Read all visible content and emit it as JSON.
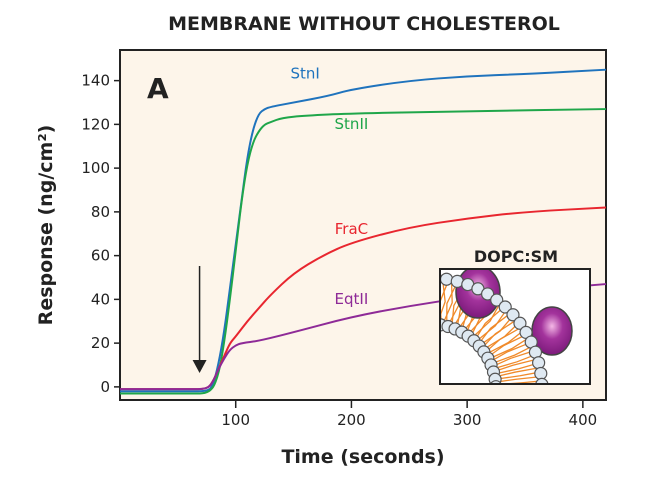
{
  "chart_data": {
    "type": "line",
    "title": "MEMBRANE WITHOUT CHOLESTEROL",
    "panel_label": "A",
    "xlabel": "Time (seconds)",
    "ylabel": "Response (ng/cm²)",
    "xlim": [
      0,
      420
    ],
    "ylim": [
      -6,
      154
    ],
    "xticks": [
      100,
      200,
      300,
      400
    ],
    "yticks": [
      0,
      20,
      40,
      60,
      80,
      100,
      120,
      140
    ],
    "grid": false,
    "background": "#fdf5ea",
    "arrow_annotation_x": 80,
    "inset_label": "DOPC:SM",
    "series": [
      {
        "name": "StnI",
        "color": "#1f73bd",
        "x": [
          0,
          60,
          75,
          80,
          85,
          90,
          95,
          100,
          105,
          110,
          115,
          120,
          125,
          130,
          150,
          180,
          200,
          250,
          300,
          350,
          420
        ],
        "y": [
          -2,
          -2,
          -2,
          0,
          10,
          25,
          45,
          65,
          85,
          105,
          118,
          125,
          127,
          128,
          130,
          133,
          136,
          140,
          142,
          143,
          145
        ]
      },
      {
        "name": "StnII",
        "color": "#1fa64a",
        "x": [
          0,
          60,
          78,
          85,
          90,
          95,
          100,
          105,
          110,
          115,
          120,
          125,
          130,
          140,
          160,
          200,
          300,
          420
        ],
        "y": [
          -3,
          -3,
          -3,
          5,
          20,
          40,
          62,
          85,
          102,
          112,
          117,
          120,
          121,
          123,
          124,
          125,
          126,
          127
        ]
      },
      {
        "name": "FraC",
        "color": "#e8262f",
        "x": [
          0,
          60,
          75,
          80,
          85,
          90,
          95,
          100,
          110,
          120,
          130,
          150,
          175,
          200,
          250,
          300,
          350,
          420
        ],
        "y": [
          -1,
          -1,
          -1,
          2,
          8,
          14,
          20,
          23,
          30,
          36,
          42,
          52,
          60,
          66,
          73,
          77,
          80,
          82
        ]
      },
      {
        "name": "EqtII",
        "color": "#8e2a97",
        "x": [
          0,
          60,
          75,
          80,
          85,
          90,
          95,
          100,
          105,
          120,
          150,
          200,
          250,
          300,
          350,
          420
        ],
        "y": [
          -1,
          -1,
          -1,
          2,
          8,
          13,
          17,
          19,
          20,
          21,
          25,
          32,
          37,
          41,
          44,
          47
        ]
      }
    ]
  }
}
